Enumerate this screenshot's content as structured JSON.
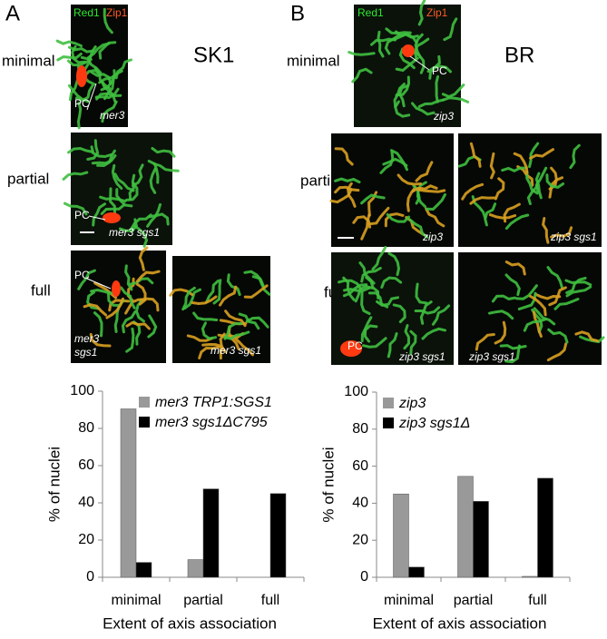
{
  "figure": {
    "panels": [
      {
        "letter": "A",
        "strain": "SK1",
        "row_labels": [
          "minimal",
          "partial",
          "full"
        ],
        "images": [
          {
            "texts": [
              "Red1",
              "Zip1",
              "PC",
              "mer3"
            ]
          },
          {
            "texts": [
              "PC",
              "mer3 sgs1"
            ]
          },
          {
            "texts": [
              "PC",
              "mer3",
              "sgs1"
            ]
          },
          {
            "texts": [
              "mer3 sgs1"
            ]
          }
        ]
      },
      {
        "letter": "B",
        "strain": "BR",
        "row_labels": [
          "minimal",
          "partial",
          "full"
        ],
        "images": [
          {
            "texts": [
              "Red1",
              "Zip1",
              "PC",
              "zip3"
            ]
          },
          {
            "texts": [
              "zip3"
            ]
          },
          {
            "texts": [
              "zip3 sgs1"
            ]
          },
          {
            "texts": [
              "PC",
              "zip3 sgs1"
            ]
          },
          {
            "texts": [
              "zip3 sgs1"
            ]
          }
        ]
      }
    ]
  },
  "chart_data": [
    {
      "type": "bar",
      "xlabel": "Extent of axis association",
      "ylabel": "% of nuclei",
      "categories": [
        "minimal",
        "partial",
        "full"
      ],
      "series": [
        {
          "name": "mer3 TRP1:SGS1",
          "color": "#999999",
          "values": [
            90.5,
            9.5,
            0
          ]
        },
        {
          "name": "mer3 sgs1ΔC795",
          "color": "#000000",
          "values": [
            8,
            47.5,
            45
          ]
        }
      ],
      "ylim": [
        0,
        100
      ],
      "yticks": [
        0,
        20,
        40,
        60,
        80,
        100
      ],
      "grid": false,
      "legend": "upper left"
    },
    {
      "type": "bar",
      "xlabel": "Extent of axis association",
      "ylabel": "% of nuclei",
      "categories": [
        "minimal",
        "partial",
        "full"
      ],
      "series": [
        {
          "name": "zip3",
          "color": "#999999",
          "values": [
            45,
            54.5,
            0.5
          ]
        },
        {
          "name": "zip3 sgs1Δ",
          "color": "#000000",
          "values": [
            5.5,
            41,
            53.5
          ]
        }
      ],
      "ylim": [
        0,
        100
      ],
      "yticks": [
        0,
        20,
        40,
        60,
        80,
        100
      ],
      "grid": false,
      "legend": "upper left"
    }
  ]
}
